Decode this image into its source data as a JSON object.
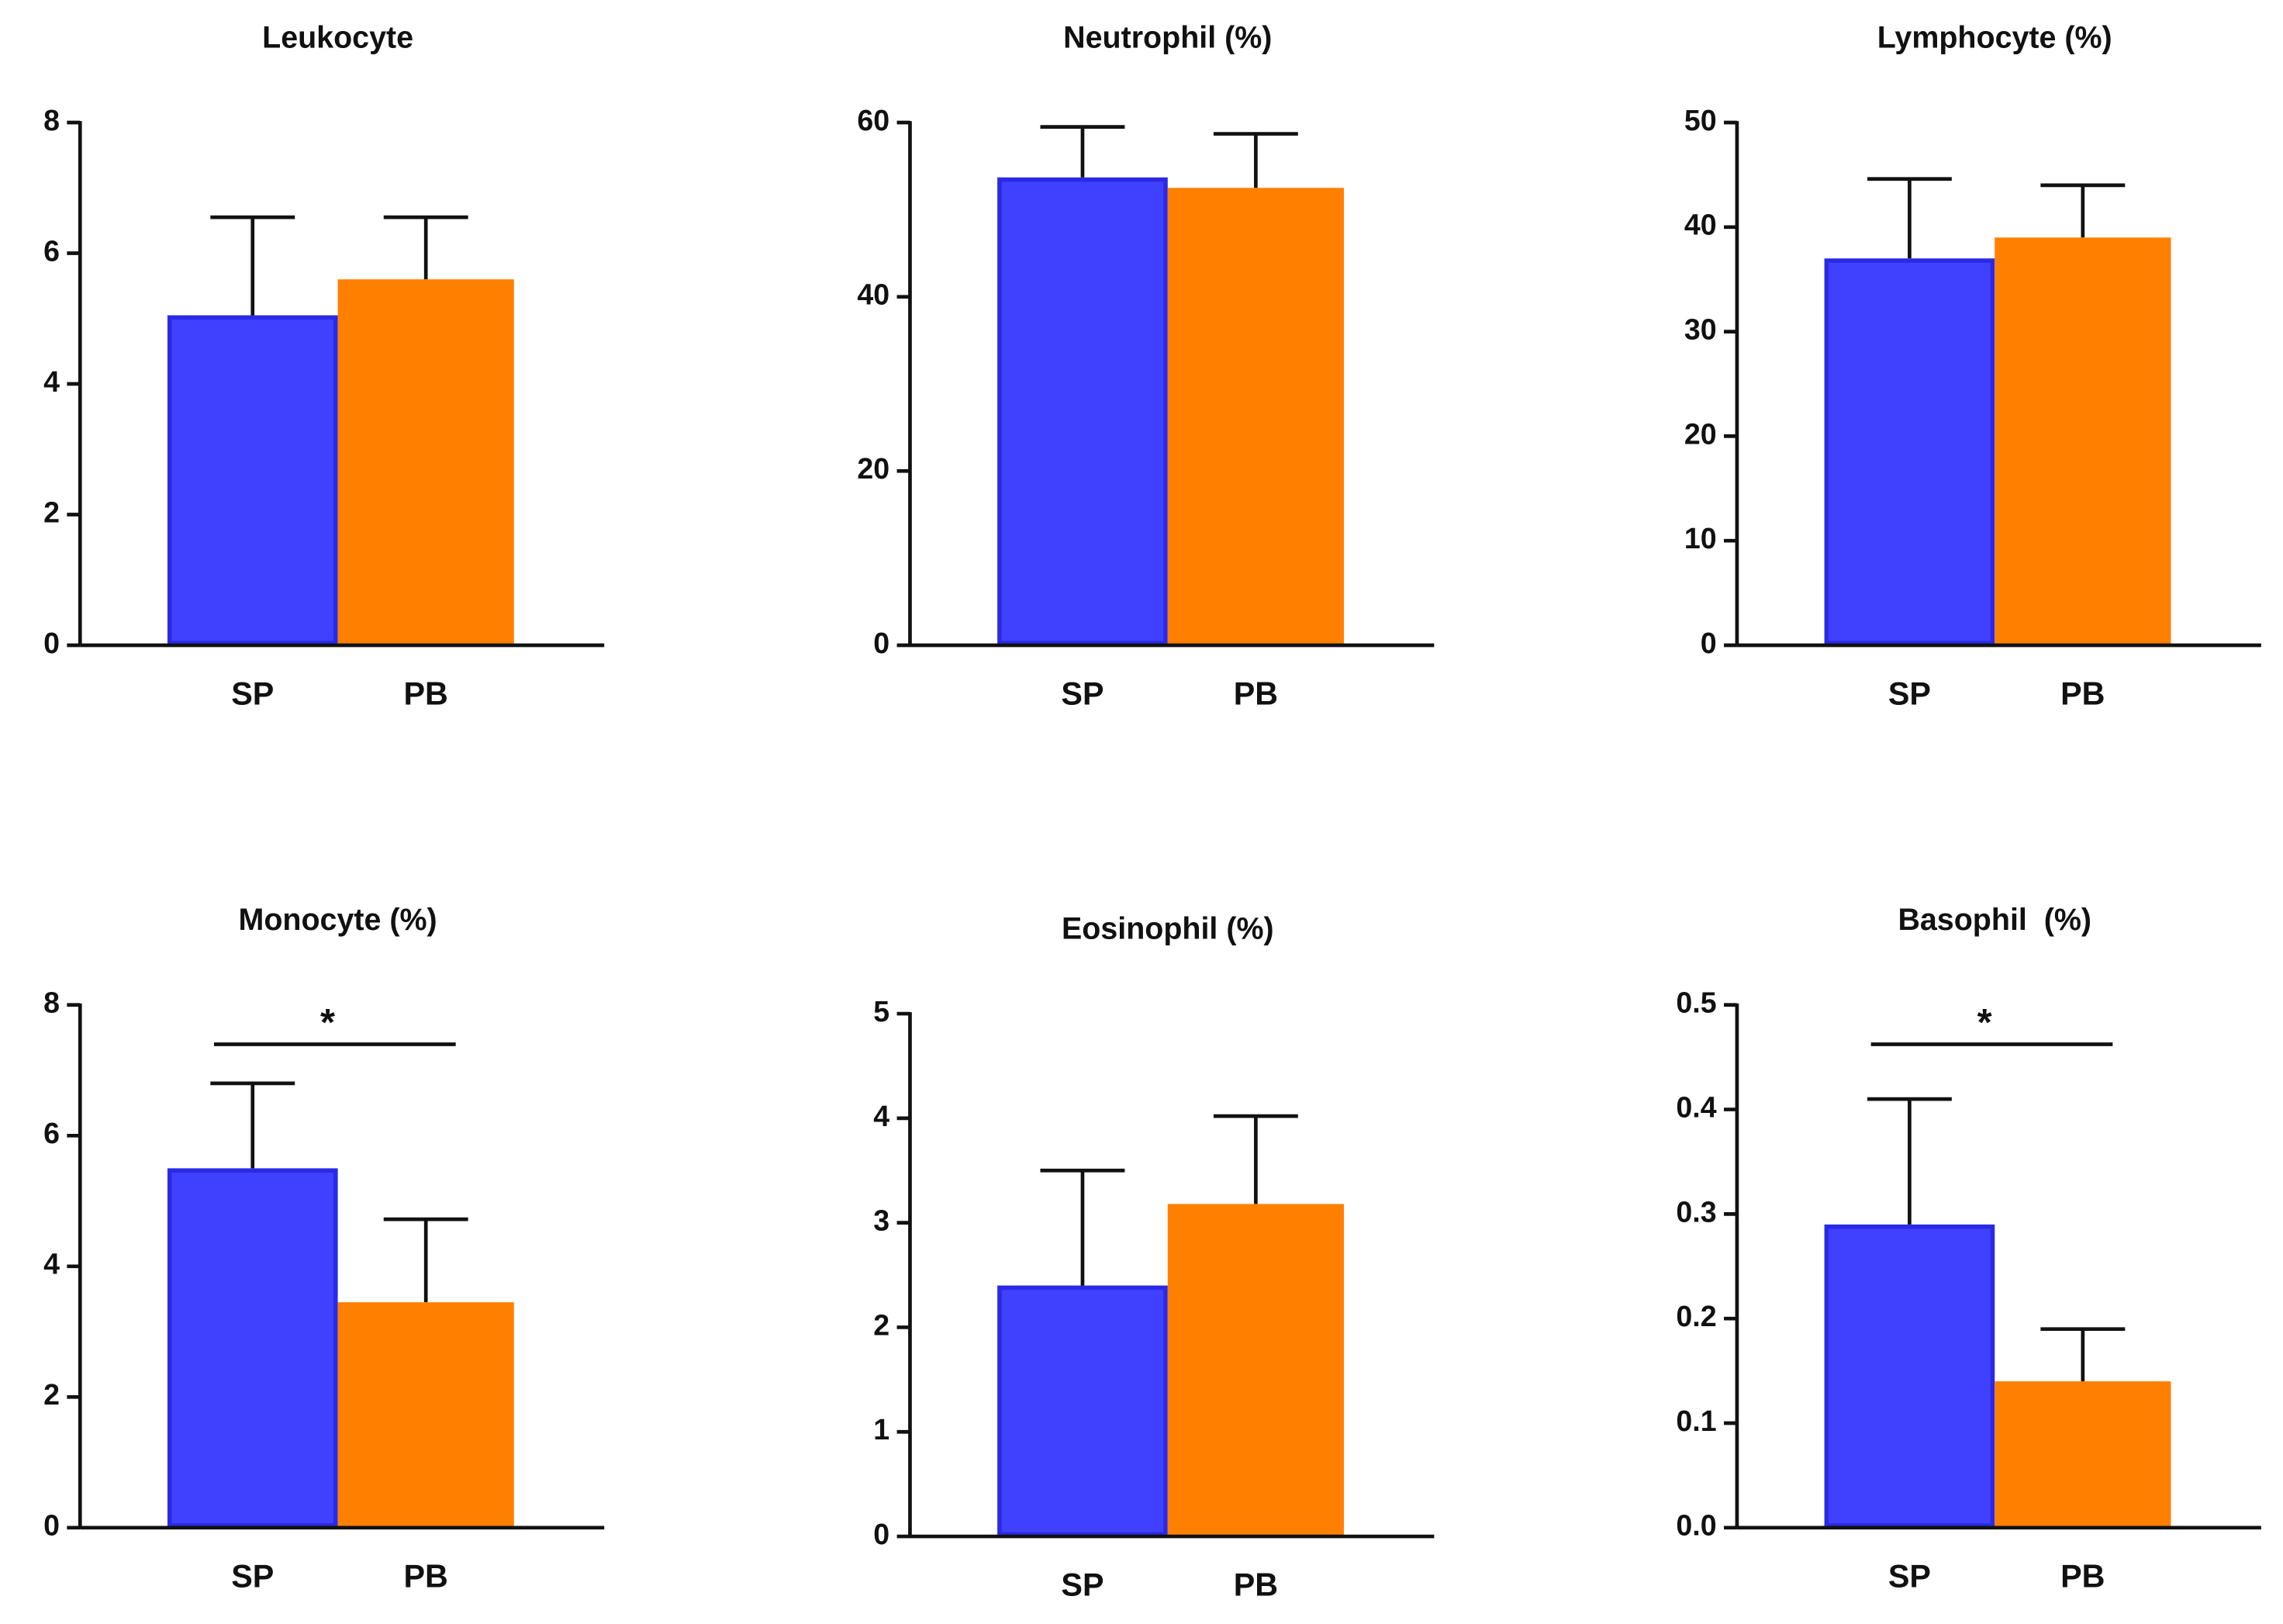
{
  "chart_data": [
    {
      "type": "bar",
      "title": "Leukocyte",
      "categories": [
        "SP",
        "PB"
      ],
      "values": [
        5.05,
        5.6
      ],
      "errors": [
        1.5,
        0.95
      ],
      "colors": [
        "#4040ff",
        "#ff8000"
      ],
      "ylim": [
        0,
        8
      ],
      "yticks": [
        0,
        2,
        4,
        6,
        8
      ]
    },
    {
      "type": "bar",
      "title": "Neutrophil (%)",
      "categories": [
        "SP",
        "PB"
      ],
      "values": [
        53.7,
        52.5
      ],
      "errors": [
        5.8,
        6.2
      ],
      "colors": [
        "#4040ff",
        "#ff8000"
      ],
      "ylim": [
        0,
        60
      ],
      "yticks": [
        0,
        20,
        40,
        60
      ]
    },
    {
      "type": "bar",
      "title": "Lymphocyte (%)",
      "categories": [
        "SP",
        "PB"
      ],
      "values": [
        37,
        39
      ],
      "errors": [
        7.6,
        5
      ],
      "colors": [
        "#4040ff",
        "#ff8000"
      ],
      "ylim": [
        0,
        50
      ],
      "yticks": [
        0,
        10,
        20,
        30,
        40,
        50
      ]
    },
    {
      "type": "bar",
      "title": "Monocyte (%)",
      "categories": [
        "SP",
        "PB"
      ],
      "values": [
        5.5,
        3.45
      ],
      "errors": [
        1.3,
        1.27
      ],
      "colors": [
        "#4040ff",
        "#ff8000"
      ],
      "ylim": [
        0,
        8
      ],
      "yticks": [
        0,
        2,
        4,
        6,
        8
      ],
      "annotation": "*"
    },
    {
      "type": "bar",
      "title": "Eosinophil (%)",
      "categories": [
        "SP",
        "PB"
      ],
      "values": [
        2.4,
        3.18
      ],
      "errors": [
        1.1,
        0.84
      ],
      "colors": [
        "#4040ff",
        "#ff8000"
      ],
      "ylim": [
        0,
        5
      ],
      "yticks": [
        0,
        1,
        2,
        3,
        4,
        5
      ]
    },
    {
      "type": "bar",
      "title": "Basophil  (%)",
      "categories": [
        "SP",
        "PB"
      ],
      "values": [
        0.29,
        0.14
      ],
      "errors": [
        0.12,
        0.05
      ],
      "colors": [
        "#4040ff",
        "#ff8000"
      ],
      "ylim": [
        0,
        0.5
      ],
      "yticks": [
        {
          "value": 0,
          "label": "0.0"
        },
        0.1,
        0.2,
        0.3,
        0.4,
        0.5
      ],
      "annotation": "*"
    }
  ]
}
